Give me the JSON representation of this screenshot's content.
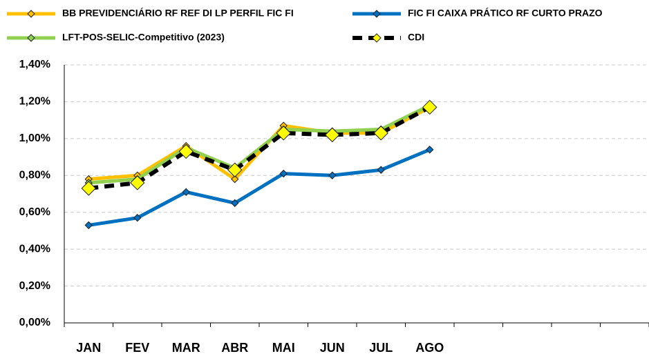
{
  "chart_data": {
    "type": "line",
    "categories": [
      "JAN",
      "FEV",
      "MAR",
      "ABR",
      "MAI",
      "JUN",
      "JUL",
      "AGO",
      null,
      null,
      null,
      null
    ],
    "series": [
      {
        "name": "BB PREVIDENCIÁRIO RF REF DI LP PERFIL FIC FI",
        "color": "#ffc000",
        "marker_color": "#ffc000",
        "marker_size": 5,
        "dashed": false,
        "values": [
          0.78,
          0.8,
          0.96,
          0.78,
          1.07,
          1.03,
          1.03,
          1.17,
          null,
          null,
          null,
          null
        ]
      },
      {
        "name": "FIC FI CAIXA PRÁTICO RF CURTO PRAZO",
        "color": "#0070c0",
        "marker_color": "#0070c0",
        "marker_size": 5,
        "dashed": false,
        "values": [
          0.53,
          0.57,
          0.71,
          0.65,
          0.81,
          0.8,
          0.83,
          0.94,
          null,
          null,
          null,
          null
        ]
      },
      {
        "name": "LFT-POS-SELIC-Competitivo (2023)",
        "color": "#92d050",
        "marker_color": "#92d050",
        "marker_size": 5,
        "dashed": false,
        "values": [
          0.76,
          0.78,
          0.95,
          0.84,
          1.05,
          1.04,
          1.05,
          1.18,
          null,
          null,
          null,
          null
        ]
      },
      {
        "name": "CDI",
        "color": "#000000",
        "marker_color": "#ffff00",
        "marker_size": 10,
        "dashed": true,
        "values": [
          0.73,
          0.76,
          0.93,
          0.83,
          1.03,
          1.02,
          1.03,
          1.17,
          null,
          null,
          null,
          null
        ]
      }
    ],
    "ylim": [
      0,
      1.4
    ],
    "yticks": [
      {
        "value": 0,
        "label": "0,00%"
      },
      {
        "value": 0.2,
        "label": "0,20%"
      },
      {
        "value": 0.4,
        "label": "0,40%"
      },
      {
        "value": 0.6,
        "label": "0,60%"
      },
      {
        "value": 0.8,
        "label": "0,80%"
      },
      {
        "value": 1.0,
        "label": "1,00%"
      },
      {
        "value": 1.2,
        "label": "1,20%"
      },
      {
        "value": 1.4,
        "label": "1,40%"
      }
    ],
    "grid": true,
    "legend": "top"
  }
}
